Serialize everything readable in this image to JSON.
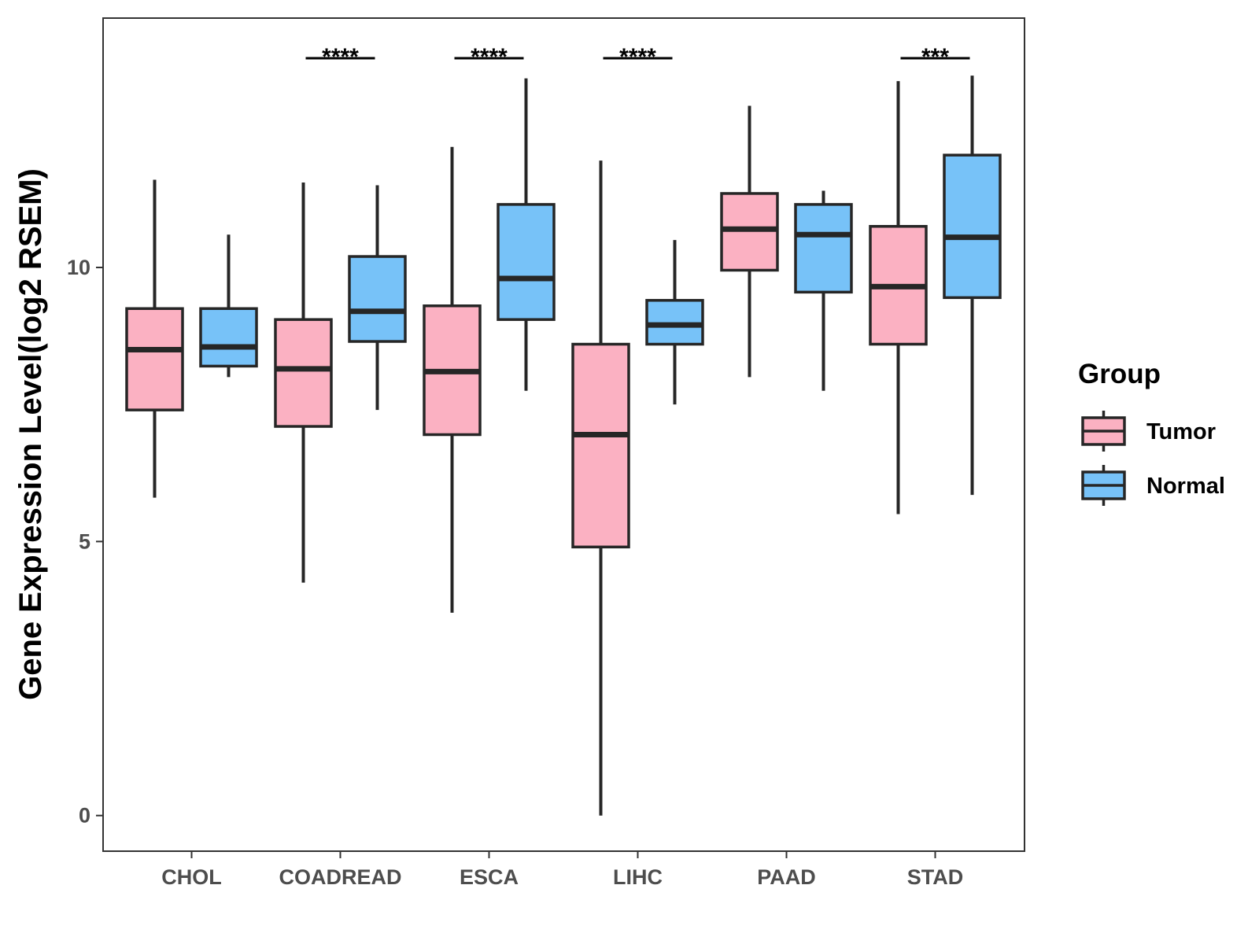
{
  "chart_data": {
    "type": "boxplot",
    "title": "",
    "xlabel": "",
    "ylabel": "Gene Expression Level(log2 RSEM)",
    "ylim": [
      -0.65,
      14.55
    ],
    "yticks": [
      0,
      5,
      10
    ],
    "ytick_labels": [
      "0",
      "5",
      "10"
    ],
    "grid": false,
    "categories": [
      "CHOL",
      "COADREAD",
      "ESCA",
      "LIHC",
      "PAAD",
      "STAD"
    ],
    "legend": {
      "title": "Group",
      "placement": "right",
      "entries": [
        "Tumor",
        "Normal"
      ]
    },
    "series": [
      {
        "name": "Tumor",
        "color": "#fbb1c2",
        "boxes": [
          {
            "category": "CHOL",
            "whisker_low": 5.8,
            "q1": 7.4,
            "median": 8.5,
            "q3": 9.25,
            "whisker_high": 11.6
          },
          {
            "category": "COADREAD",
            "whisker_low": 4.25,
            "q1": 7.1,
            "median": 8.15,
            "q3": 9.05,
            "whisker_high": 11.55
          },
          {
            "category": "ESCA",
            "whisker_low": 3.7,
            "q1": 6.95,
            "median": 8.1,
            "q3": 9.3,
            "whisker_high": 12.2
          },
          {
            "category": "LIHC",
            "whisker_low": 0.0,
            "q1": 4.9,
            "median": 6.95,
            "q3": 8.6,
            "whisker_high": 11.95
          },
          {
            "category": "PAAD",
            "whisker_low": 8.0,
            "q1": 9.95,
            "median": 10.7,
            "q3": 11.35,
            "whisker_high": 12.95
          },
          {
            "category": "STAD",
            "whisker_low": 5.5,
            "q1": 8.6,
            "median": 9.65,
            "q3": 10.75,
            "whisker_high": 13.4
          }
        ]
      },
      {
        "name": "Normal",
        "color": "#77c2f8",
        "boxes": [
          {
            "category": "CHOL",
            "whisker_low": 8.0,
            "q1": 8.2,
            "median": 8.55,
            "q3": 9.25,
            "whisker_high": 10.6
          },
          {
            "category": "COADREAD",
            "whisker_low": 7.4,
            "q1": 8.65,
            "median": 9.2,
            "q3": 10.2,
            "whisker_high": 11.5
          },
          {
            "category": "ESCA",
            "whisker_low": 7.75,
            "q1": 9.05,
            "median": 9.8,
            "q3": 11.15,
            "whisker_high": 13.45
          },
          {
            "category": "LIHC",
            "whisker_low": 7.5,
            "q1": 8.6,
            "median": 8.95,
            "q3": 9.4,
            "whisker_high": 10.5
          },
          {
            "category": "PAAD",
            "whisker_low": 7.75,
            "q1": 9.55,
            "median": 10.6,
            "q3": 11.15,
            "whisker_high": 11.4
          },
          {
            "category": "STAD",
            "whisker_low": 5.85,
            "q1": 9.45,
            "median": 10.55,
            "q3": 12.05,
            "whisker_high": 13.5
          }
        ]
      }
    ],
    "annotations": [
      {
        "category": "COADREAD",
        "label": "****"
      },
      {
        "category": "ESCA",
        "label": "****"
      },
      {
        "category": "LIHC",
        "label": "****"
      },
      {
        "category": "STAD",
        "label": "***"
      }
    ]
  },
  "colors": {
    "tumor": "#fbb1c2",
    "normal": "#77c2f8",
    "outline": "#262626",
    "axis_text": "#4d4d4d"
  }
}
